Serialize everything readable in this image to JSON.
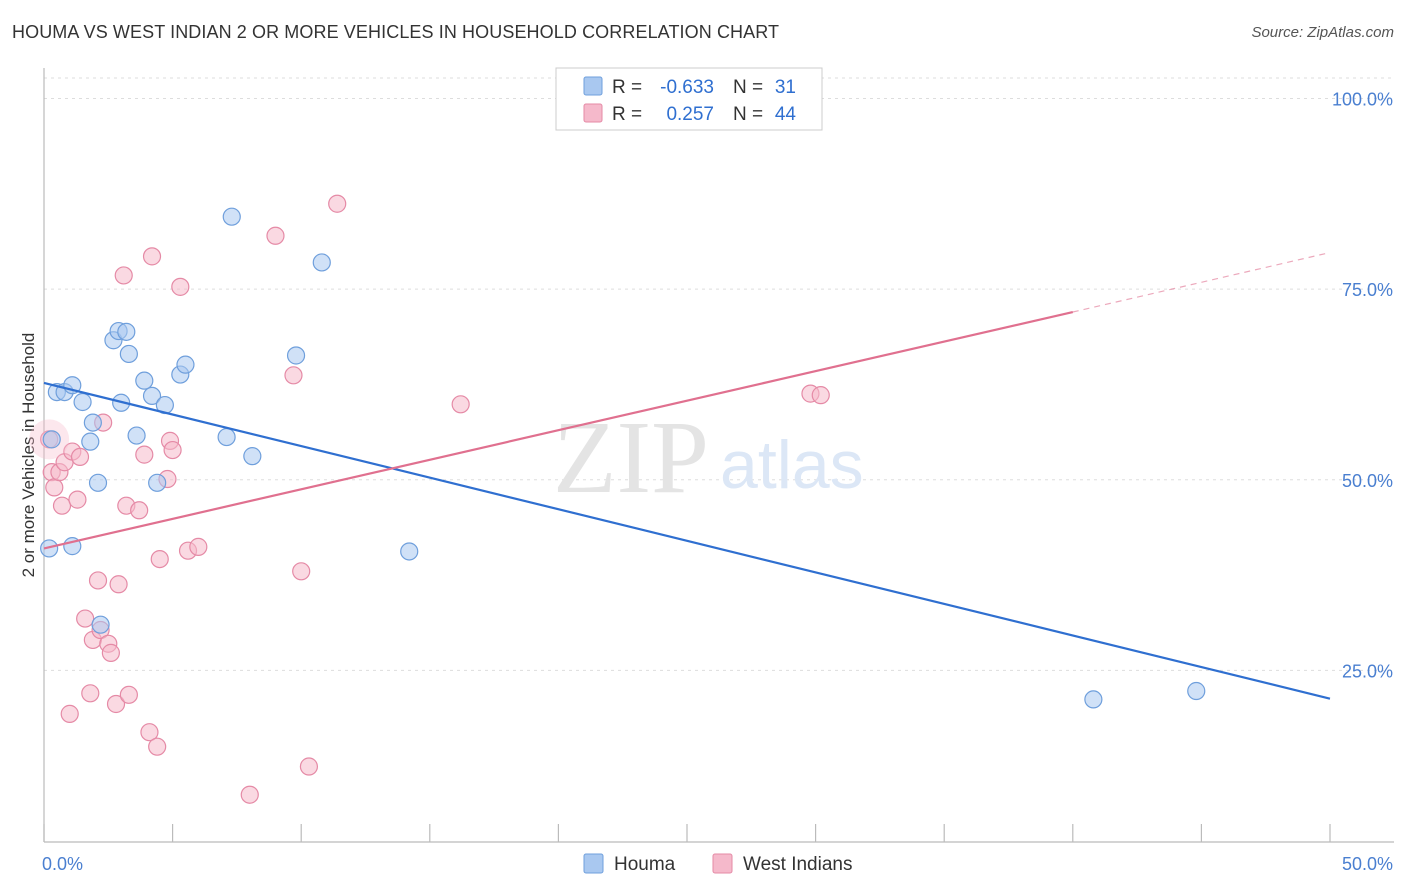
{
  "header": {
    "title": "HOUMA VS WEST INDIAN 2 OR MORE VEHICLES IN HOUSEHOLD CORRELATION CHART",
    "source": "Source: ZipAtlas.com"
  },
  "watermark": {
    "zip": "ZIP",
    "atlas": "atlas"
  },
  "colors": {
    "houma": "#a9c8f0",
    "houma_stroke": "#6f9fdc",
    "houma_line": "#2f6fd0",
    "west": "#f5b9cb",
    "west_stroke": "#e58aa6",
    "west_line": "#e0708f",
    "accent_text": "#2f6fd0"
  },
  "legend": {
    "rows": [
      {
        "key": "houma",
        "r_label": "R = ",
        "r_value": "-0.633",
        "n_label": "N = ",
        "n_value": "31"
      },
      {
        "key": "west",
        "r_label": "R = ",
        "r_value": "0.257",
        "n_label": "N = ",
        "n_value": "44"
      }
    ]
  },
  "chart_data": {
    "type": "scatter",
    "title": "HOUMA VS WEST INDIAN 2 OR MORE VEHICLES IN HOUSEHOLD CORRELATION CHART",
    "xlabel": "",
    "ylabel": "2 or more Vehicles in Household",
    "xlim": [
      0,
      50
    ],
    "ylim": [
      2.5,
      104
    ],
    "x_tick_labels": [
      {
        "value": 0,
        "label": "0.0%"
      },
      {
        "value": 50,
        "label": "50.0%"
      }
    ],
    "y_tick_labels": [
      {
        "value": 25,
        "label": "25.0%"
      },
      {
        "value": 50,
        "label": "50.0%"
      },
      {
        "value": 75,
        "label": "75.0%"
      },
      {
        "value": 100,
        "label": "100.0%"
      }
    ],
    "y_gridlines": [
      25,
      50,
      75,
      100
    ],
    "legend_position": "top-center",
    "series": [
      {
        "name": "Houma",
        "key": "houma",
        "r": -0.633,
        "n": 31,
        "trend": {
          "x0": 0,
          "y0": 62.7,
          "x1": 50,
          "y1": 21.3
        },
        "points": [
          [
            0.2,
            41.0
          ],
          [
            0.3,
            55.3
          ],
          [
            0.5,
            61.5
          ],
          [
            0.8,
            61.5
          ],
          [
            1.1,
            62.4
          ],
          [
            1.5,
            60.2
          ],
          [
            1.9,
            57.5
          ],
          [
            1.8,
            55.0
          ],
          [
            2.1,
            49.6
          ],
          [
            1.1,
            41.3
          ],
          [
            2.7,
            68.3
          ],
          [
            2.9,
            69.5
          ],
          [
            3.2,
            69.4
          ],
          [
            3.3,
            66.5
          ],
          [
            3.0,
            60.1
          ],
          [
            3.6,
            55.8
          ],
          [
            3.9,
            63.0
          ],
          [
            4.2,
            61.0
          ],
          [
            4.4,
            49.6
          ],
          [
            4.7,
            59.8
          ],
          [
            5.3,
            63.8
          ],
          [
            5.5,
            65.1
          ],
          [
            7.1,
            55.6
          ],
          [
            7.3,
            84.5
          ],
          [
            8.1,
            53.1
          ],
          [
            9.8,
            66.3
          ],
          [
            10.8,
            78.5
          ],
          [
            14.2,
            40.6
          ],
          [
            40.8,
            21.2
          ],
          [
            44.8,
            22.3
          ],
          [
            2.2,
            31.0
          ]
        ]
      },
      {
        "name": "West Indians",
        "key": "west",
        "r": 0.257,
        "n": 44,
        "trend": {
          "x0": 0,
          "y0": 41.0,
          "x1": 40,
          "y1": 72.0,
          "dash_to_x": 50,
          "dash_to_y": 79.8
        },
        "points": [
          [
            0.2,
            55.3
          ],
          [
            0.3,
            51.0
          ],
          [
            0.4,
            49.0
          ],
          [
            0.6,
            51.0
          ],
          [
            0.7,
            46.6
          ],
          [
            0.8,
            52.3
          ],
          [
            1.1,
            53.7
          ],
          [
            1.3,
            47.4
          ],
          [
            1.4,
            53.0
          ],
          [
            1.6,
            31.8
          ],
          [
            1.8,
            22.0
          ],
          [
            1.9,
            29.0
          ],
          [
            2.1,
            36.8
          ],
          [
            2.2,
            30.3
          ],
          [
            2.3,
            57.5
          ],
          [
            2.5,
            28.5
          ],
          [
            2.6,
            27.3
          ],
          [
            2.8,
            20.6
          ],
          [
            2.9,
            36.3
          ],
          [
            3.1,
            76.8
          ],
          [
            3.2,
            46.6
          ],
          [
            3.3,
            21.8
          ],
          [
            3.7,
            46.0
          ],
          [
            3.9,
            53.3
          ],
          [
            4.1,
            16.9
          ],
          [
            4.2,
            79.3
          ],
          [
            4.4,
            15.0
          ],
          [
            4.5,
            39.6
          ],
          [
            4.8,
            50.1
          ],
          [
            4.9,
            55.1
          ],
          [
            5.0,
            53.9
          ],
          [
            5.3,
            75.3
          ],
          [
            5.6,
            40.7
          ],
          [
            6.0,
            41.2
          ],
          [
            8.0,
            8.7
          ],
          [
            9.0,
            82.0
          ],
          [
            9.7,
            63.7
          ],
          [
            10.0,
            38.0
          ],
          [
            10.3,
            12.4
          ],
          [
            11.4,
            86.2
          ],
          [
            16.2,
            59.9
          ],
          [
            29.8,
            61.3
          ],
          [
            30.2,
            61.1
          ],
          [
            1.0,
            19.3
          ]
        ]
      }
    ]
  },
  "bottom_legend": [
    {
      "key": "houma",
      "label": "Houma"
    },
    {
      "key": "west",
      "label": "West Indians"
    }
  ]
}
